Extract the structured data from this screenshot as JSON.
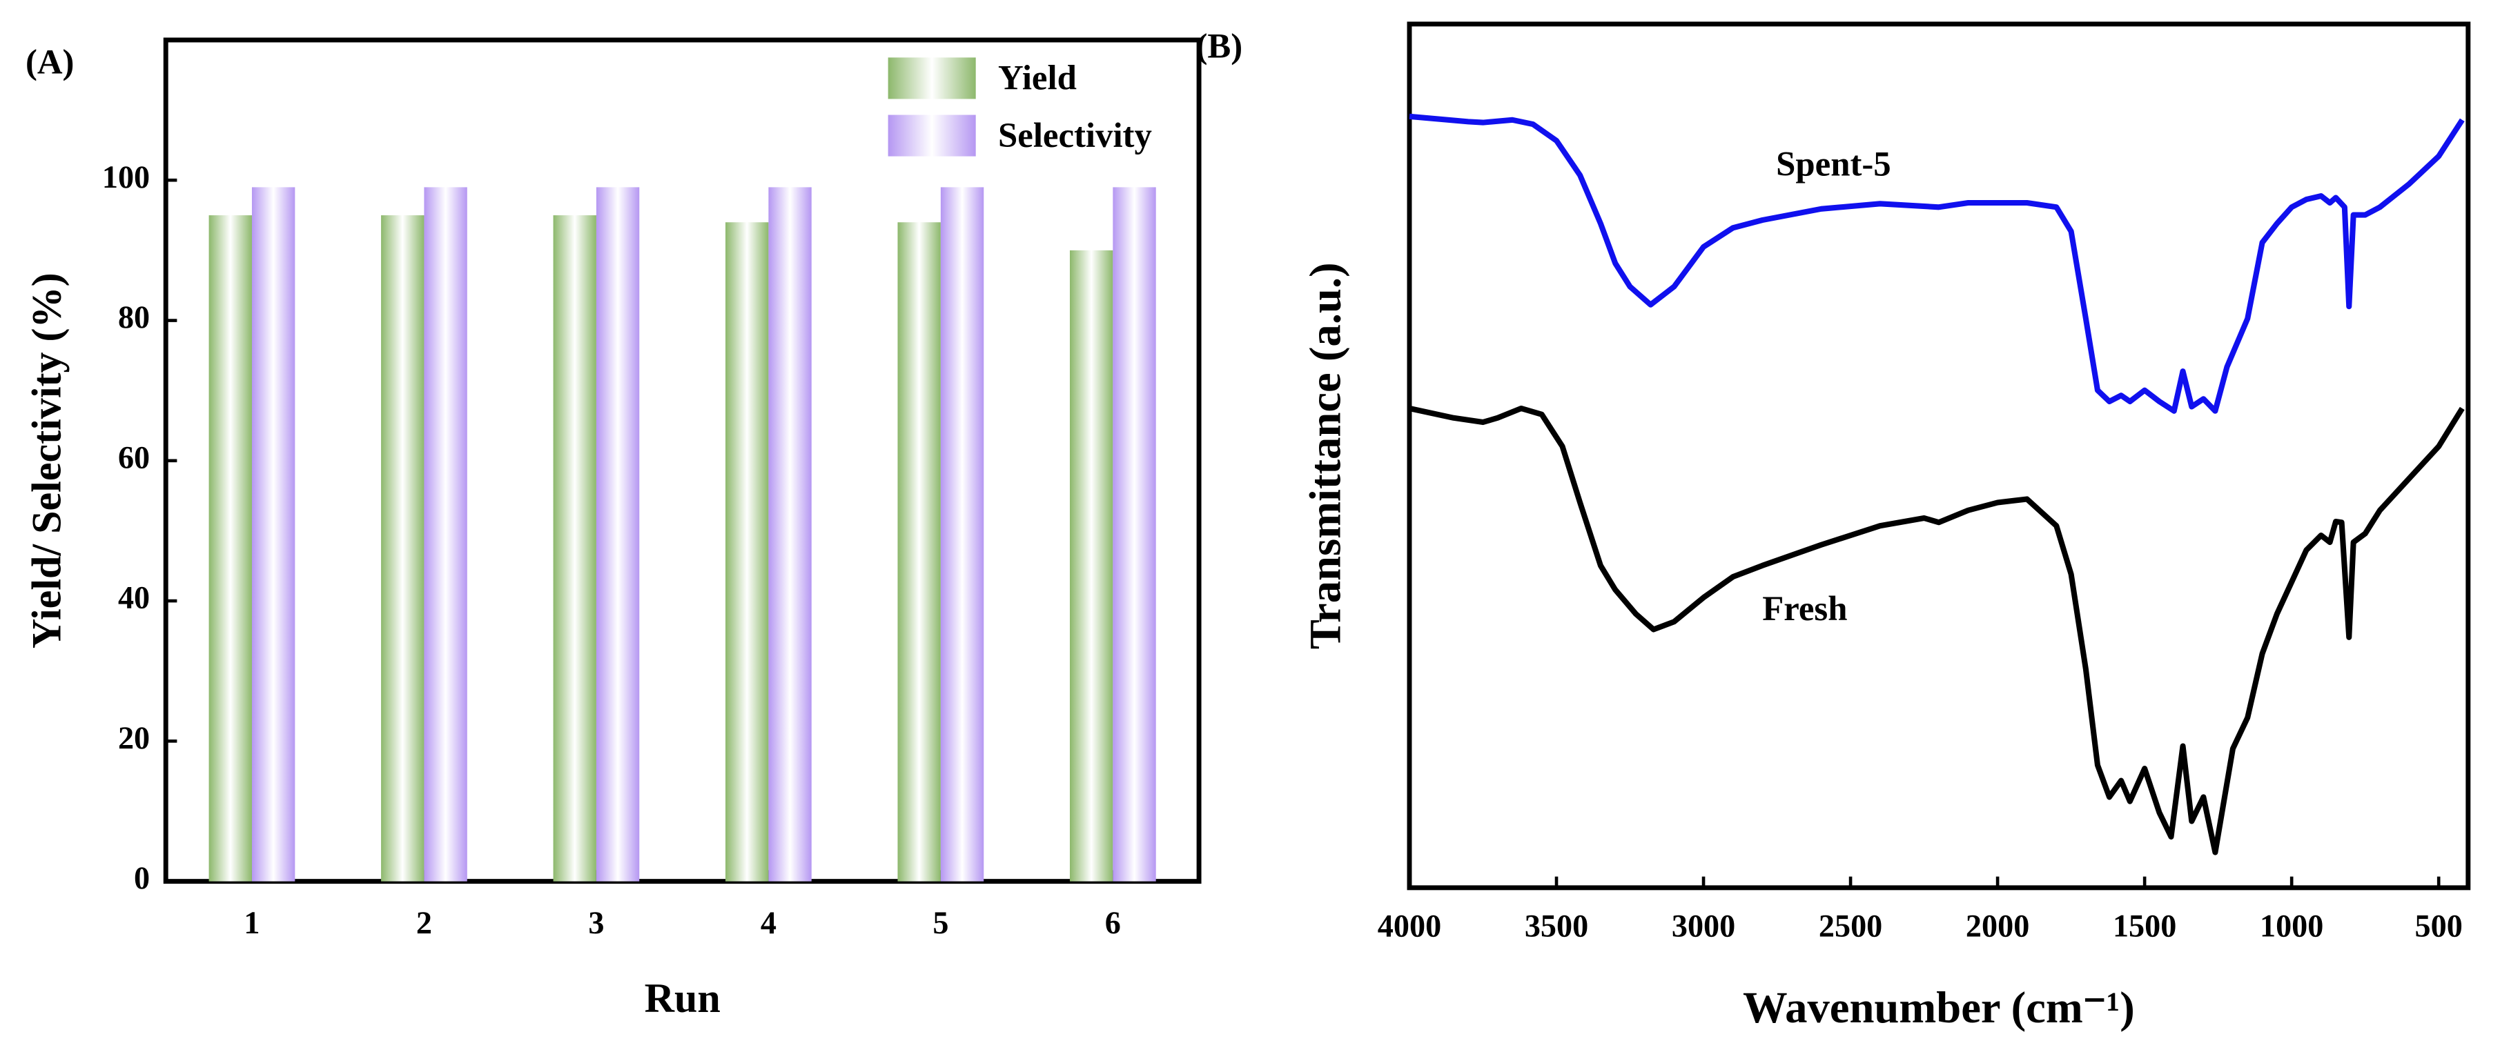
{
  "chart_data": [
    {
      "type": "bar",
      "panel_label": "(A)",
      "xlabel": "Run",
      "ylabel": "Yield/ Selectivity (%)",
      "categories": [
        "1",
        "2",
        "3",
        "4",
        "5",
        "6"
      ],
      "series": [
        {
          "name": "Yield",
          "color": "#8db86c",
          "values": [
            95,
            95,
            95,
            94,
            94,
            90
          ]
        },
        {
          "name": "Selectivity",
          "color": "#b597f2",
          "values": [
            99,
            99,
            99,
            99,
            99,
            99
          ]
        }
      ],
      "ylim": [
        0,
        120
      ],
      "yticks": [
        0,
        20,
        40,
        60,
        80,
        100
      ],
      "legend": "upper right"
    },
    {
      "type": "line",
      "panel_label": "(B)",
      "xlabel": "Wavenumber (cm⁻¹)",
      "ylabel": "Transmittance (a.u.)",
      "xlim": [
        4000,
        400
      ],
      "xticks": [
        4000,
        3500,
        3000,
        2500,
        2000,
        1500,
        1000,
        500
      ],
      "ylim": [
        0,
        100
      ],
      "series": [
        {
          "name": "Spent-5",
          "color": "#1010ee",
          "x": [
            4000,
            3800,
            3750,
            3650,
            3580,
            3500,
            3420,
            3350,
            3300,
            3250,
            3180,
            3100,
            3000,
            2900,
            2800,
            2600,
            2400,
            2200,
            2100,
            1900,
            1800,
            1750,
            1700,
            1660,
            1620,
            1580,
            1550,
            1500,
            1450,
            1400,
            1370,
            1340,
            1300,
            1260,
            1220,
            1150,
            1100,
            1050,
            1000,
            950,
            900,
            870,
            850,
            820,
            805,
            790,
            750,
            700,
            600,
            500,
            420
          ],
          "values": [
            89.3,
            88.7,
            88.6,
            88.9,
            88.4,
            86.5,
            82.5,
            76.9,
            72.3,
            69.6,
            67.5,
            69.6,
            74.2,
            76.4,
            77.3,
            78.6,
            79.2,
            78.8,
            79.3,
            79.3,
            78.8,
            76.0,
            65.9,
            57.6,
            56.3,
            57.0,
            56.3,
            57.6,
            56.3,
            55.2,
            59.8,
            55.7,
            56.6,
            55.2,
            60.3,
            65.9,
            74.7,
            76.9,
            78.8,
            79.7,
            80.1,
            79.3,
            79.9,
            78.8,
            67.3,
            77.9,
            77.9,
            78.8,
            81.5,
            84.7,
            88.9
          ]
        },
        {
          "name": "Fresh",
          "color": "#000000",
          "x": [
            4000,
            3850,
            3750,
            3700,
            3620,
            3550,
            3480,
            3420,
            3350,
            3300,
            3230,
            3170,
            3100,
            3000,
            2900,
            2800,
            2600,
            2400,
            2250,
            2200,
            2100,
            2000,
            1900,
            1800,
            1750,
            1700,
            1660,
            1620,
            1580,
            1550,
            1500,
            1450,
            1410,
            1370,
            1340,
            1300,
            1260,
            1200,
            1150,
            1100,
            1050,
            1000,
            950,
            900,
            870,
            850,
            830,
            805,
            790,
            750,
            700,
            600,
            500,
            420
          ],
          "values": [
            55.5,
            54.4,
            53.9,
            54.4,
            55.5,
            54.8,
            51.1,
            44.6,
            37.3,
            34.5,
            31.7,
            29.9,
            30.8,
            33.6,
            36.0,
            37.3,
            39.7,
            41.9,
            42.8,
            42.3,
            43.7,
            44.6,
            45.0,
            41.9,
            36.3,
            25.3,
            14.2,
            10.5,
            12.4,
            10.0,
            13.8,
            8.7,
            5.9,
            16.4,
            7.7,
            10.5,
            4.1,
            16.1,
            19.7,
            27.1,
            31.7,
            35.4,
            39.1,
            40.8,
            40.0,
            42.4,
            42.3,
            29.0,
            40.0,
            41.0,
            43.7,
            47.4,
            51.1,
            55.5
          ]
        }
      ]
    }
  ]
}
